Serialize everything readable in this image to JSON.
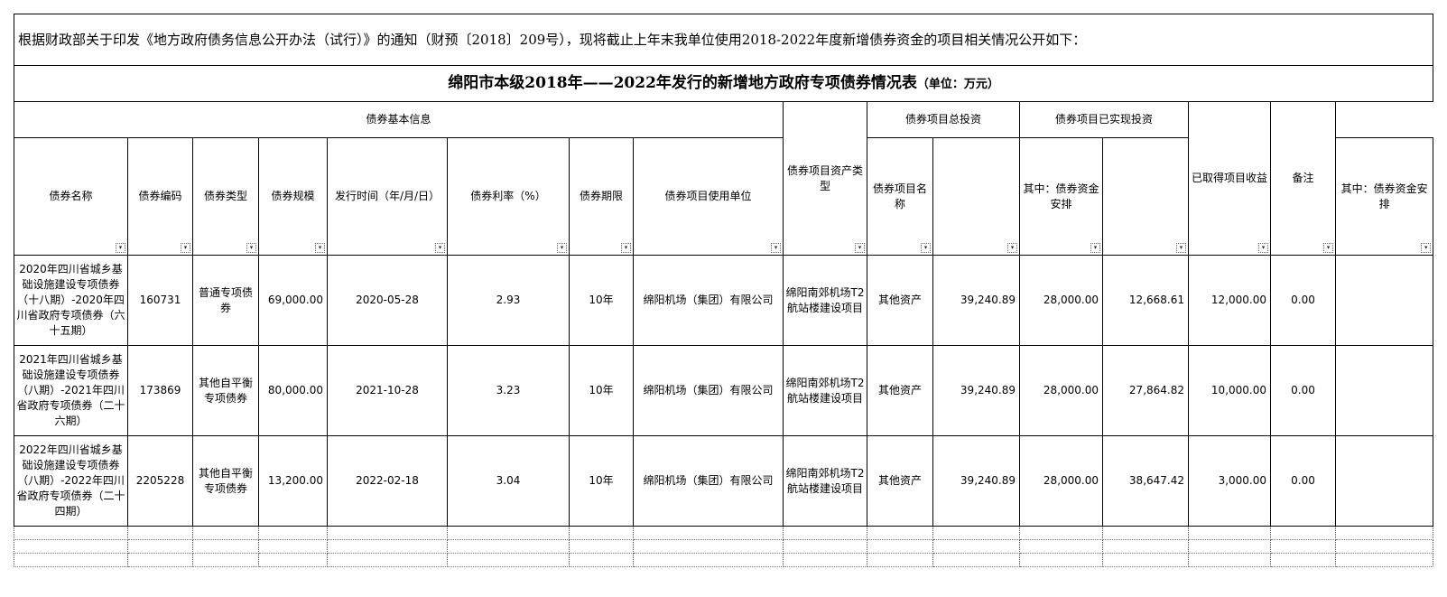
{
  "intro": "根据财政部关于印发《地方政府债务信息公开办法（试行）》的通知（财预〔2018〕209号），现将截止上年末我单位使用2018-2022年度新增债券资金的项目相关情况公开如下：",
  "title": "绵阳市本级2018年——2022年发行的新增地方政府专项债券情况表",
  "unit": "（单位：万元）",
  "groups": {
    "basic": "债券基本信息",
    "asset_type": "债券项目资产类型",
    "total_invest": "债券项目总投资",
    "realized_invest": "债券项目已实现投资",
    "income": "已取得项目收益",
    "remark": "备注"
  },
  "headers": [
    "债券名称",
    "债券编码",
    "债券类型",
    "债券规模",
    "发行时间（年/月/日）",
    "债券利率（%）",
    "债券期限",
    "债券项目使用单位",
    "债券项目名称"
  ],
  "sub_header_funding": "其中：债券资金安排",
  "filter_icon": "dropdown-filter-icon",
  "rows": [
    {
      "name": "2020年四川省城乡基础设施建设专项债券（十八期）-2020年四川省政府专项债券（六十五期）",
      "code": "160731",
      "type": "普通专项债券",
      "scale": "69,000.00",
      "date": "2020-05-28",
      "rate": "2.93",
      "term": "10年",
      "unit": "绵阳机场（集团）有限公司",
      "project": "绵阳南郊机场T2航站楼建设项目",
      "asset": "其他资产",
      "total": "39,240.89",
      "total_bond": "28,000.00",
      "realized": "12,668.61",
      "realized_bond": "12,000.00",
      "income": "0.00",
      "remark": ""
    },
    {
      "name": "2021年四川省城乡基础设施建设专项债券（八期）-2021年四川省政府专项债券（二十六期）",
      "code": "173869",
      "type": "其他自平衡专项债券",
      "scale": "80,000.00",
      "date": "2021-10-28",
      "rate": "3.23",
      "term": "10年",
      "unit": "绵阳机场（集团）有限公司",
      "project": "绵阳南郊机场T2航站楼建设项目",
      "asset": "其他资产",
      "total": "39,240.89",
      "total_bond": "28,000.00",
      "realized": "27,864.82",
      "realized_bond": "10,000.00",
      "income": "0.00",
      "remark": ""
    },
    {
      "name": "2022年四川省城乡基础设施建设专项债券（八期）-2022年四川省政府专项债券（二十四期）",
      "code": "2205228",
      "type": "其他自平衡专项债券",
      "scale": "13,200.00",
      "date": "2022-02-18",
      "rate": "3.04",
      "term": "10年",
      "unit": "绵阳机场（集团）有限公司",
      "project": "绵阳南郊机场T2航站楼建设项目",
      "asset": "其他资产",
      "total": "39,240.89",
      "total_bond": "28,000.00",
      "realized": "38,647.42",
      "realized_bond": "3,000.00",
      "income": "0.00",
      "remark": ""
    }
  ]
}
